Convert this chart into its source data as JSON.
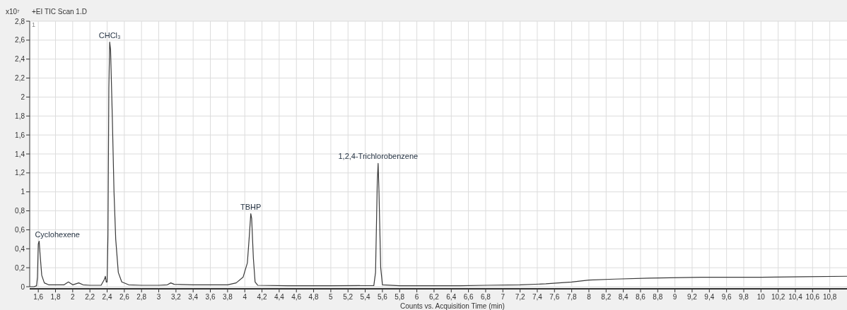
{
  "chart_data": {
    "type": "line",
    "title": "+EI TIC Scan 1.D",
    "xlabel": "Counts vs. Acquisition Time (min)",
    "ylabel": "x10⁷",
    "annotations": [
      "1",
      {
        "text": "Cyclohexene",
        "x": 1.61,
        "y": 0.48
      },
      {
        "text": "CHCl₃",
        "x": 2.43,
        "y": 2.58
      },
      {
        "text": "TBHP",
        "x": 4.07,
        "y": 0.77
      },
      {
        "text": "1,2,4-Trichlorobenzene",
        "x": 5.55,
        "y": 1.3
      }
    ],
    "series": [
      {
        "color": "#3a3a3a",
        "x": [
          1.5,
          1.55,
          1.58,
          1.59,
          1.6,
          1.61,
          1.62,
          1.64,
          1.67,
          1.72,
          1.8,
          1.9,
          1.95,
          2.0,
          2.07,
          2.12,
          2.2,
          2.33,
          2.37,
          2.38,
          2.39,
          2.4,
          2.41,
          2.42,
          2.43,
          2.44,
          2.46,
          2.48,
          2.5,
          2.53,
          2.57,
          2.65,
          2.8,
          3.0,
          3.1,
          3.14,
          3.18,
          3.4,
          3.8,
          3.9,
          3.98,
          4.03,
          4.05,
          4.07,
          4.08,
          4.1,
          4.12,
          4.15,
          4.5,
          5.0,
          5.5,
          5.52,
          5.54,
          5.55,
          5.56,
          5.58,
          5.6,
          5.8,
          6.5,
          6.8,
          7.2,
          7.5,
          7.8,
          8.0,
          8.3,
          8.7,
          9.3,
          10.0,
          10.5,
          11.0
        ],
        "values": [
          0.0,
          0.0,
          0.01,
          0.1,
          0.45,
          0.48,
          0.35,
          0.12,
          0.04,
          0.02,
          0.02,
          0.02,
          0.05,
          0.02,
          0.04,
          0.02,
          0.015,
          0.015,
          0.08,
          0.11,
          0.05,
          0.05,
          0.55,
          2.1,
          2.58,
          2.5,
          1.8,
          1.0,
          0.5,
          0.15,
          0.05,
          0.02,
          0.015,
          0.015,
          0.02,
          0.04,
          0.025,
          0.02,
          0.02,
          0.04,
          0.1,
          0.25,
          0.5,
          0.77,
          0.72,
          0.3,
          0.05,
          0.015,
          0.01,
          0.01,
          0.012,
          0.15,
          1.1,
          1.3,
          1.0,
          0.2,
          0.02,
          0.01,
          0.01,
          0.015,
          0.02,
          0.03,
          0.05,
          0.07,
          0.08,
          0.09,
          0.1,
          0.1,
          0.105,
          0.11
        ]
      }
    ],
    "xlim": [
      1.5,
      11.0
    ],
    "ylim": [
      0,
      2.8
    ],
    "xticks": [
      {
        "value": 1.6,
        "label": "1,6"
      },
      {
        "value": 1.8,
        "label": "1,8"
      },
      2,
      {
        "value": 2.2,
        "label": "2,2"
      },
      {
        "value": 2.4,
        "label": "2,4"
      },
      {
        "value": 2.6,
        "label": "2,6"
      },
      {
        "value": 2.8,
        "label": "2,8"
      },
      3,
      {
        "value": 3.2,
        "label": "3,2"
      },
      {
        "value": 3.4,
        "label": "3,4"
      },
      {
        "value": 3.6,
        "label": "3,6"
      },
      {
        "value": 3.8,
        "label": "3,8"
      },
      4,
      {
        "value": 4.2,
        "label": "4,2"
      },
      {
        "value": 4.4,
        "label": "4,4"
      },
      {
        "value": 4.6,
        "label": "4,6"
      },
      {
        "value": 4.8,
        "label": "4,8"
      },
      5,
      {
        "value": 5.2,
        "label": "5,2"
      },
      {
        "value": 5.4,
        "label": "5,4"
      },
      {
        "value": 5.6,
        "label": "5,6"
      },
      {
        "value": 5.8,
        "label": "5,8"
      },
      6,
      {
        "value": 6.2,
        "label": "6,2"
      },
      {
        "value": 6.4,
        "label": "6,4"
      },
      {
        "value": 6.6,
        "label": "6,6"
      },
      {
        "value": 6.8,
        "label": "6,8"
      },
      7,
      {
        "value": 7.2,
        "label": "7,2"
      },
      {
        "value": 7.4,
        "label": "7,4"
      },
      {
        "value": 7.6,
        "label": "7,6"
      },
      {
        "value": 7.8,
        "label": "7,8"
      },
      8,
      {
        "value": 8.2,
        "label": "8,2"
      },
      {
        "value": 8.4,
        "label": "8,4"
      },
      {
        "value": 8.6,
        "label": "8,6"
      },
      {
        "value": 8.8,
        "label": "8,8"
      },
      9,
      {
        "value": 9.2,
        "label": "9,2"
      },
      {
        "value": 9.4,
        "label": "9,4"
      },
      {
        "value": 9.6,
        "label": "9,6"
      },
      {
        "value": 9.8,
        "label": "9,8"
      },
      10,
      {
        "value": 10.2,
        "label": "10,2"
      },
      {
        "value": 10.4,
        "label": "10,4"
      },
      {
        "value": 10.6,
        "label": "10,6"
      },
      {
        "value": 10.8,
        "label": "10,8"
      }
    ],
    "yticks": [
      0,
      {
        "value": 0.2,
        "label": "0,2"
      },
      {
        "value": 0.4,
        "label": "0,4"
      },
      {
        "value": 0.6,
        "label": "0,6"
      },
      {
        "value": 0.8,
        "label": "0,8"
      },
      1,
      {
        "value": 1.2,
        "label": "1,2"
      },
      {
        "value": 1.4,
        "label": "1,4"
      },
      {
        "value": 1.6,
        "label": "1,6"
      },
      {
        "value": 1.8,
        "label": "1,8"
      },
      2,
      {
        "value": 2.2,
        "label": "2,2"
      },
      {
        "value": 2.4,
        "label": "2,4"
      },
      {
        "value": 2.6,
        "label": "2,6"
      },
      {
        "value": 2.8,
        "label": "2,8"
      }
    ],
    "grid": true,
    "marker": "none",
    "line_style": "solid"
  }
}
